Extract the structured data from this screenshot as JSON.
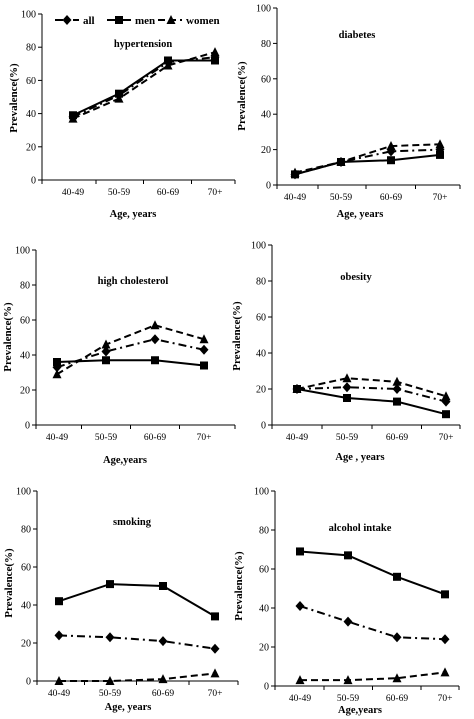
{
  "figure": {
    "legend": {
      "placement": "top-left (first panel)",
      "entries": [
        {
          "series": "all",
          "label": "all"
        },
        {
          "series": "men",
          "label": "men"
        },
        {
          "series": "women",
          "label": "women"
        }
      ]
    }
  },
  "chart_data": [
    {
      "type": "line",
      "title": "hypertension",
      "xlabel": "Age, years",
      "ylabel": "Prevalence(%)",
      "categories": [
        "40-49",
        "50-59",
        "60-69",
        "70+"
      ],
      "ylim": [
        0,
        100
      ],
      "yticks": [
        0,
        20,
        40,
        60,
        80,
        100
      ],
      "series": [
        {
          "name": "all",
          "values": [
            38,
            51,
            71,
            74
          ]
        },
        {
          "name": "men",
          "values": [
            39,
            52,
            72,
            72
          ]
        },
        {
          "name": "women",
          "values": [
            37,
            49,
            69,
            77
          ]
        }
      ]
    },
    {
      "type": "line",
      "title": "diabetes",
      "xlabel": "Age, years",
      "ylabel": "Prevalence(%)",
      "categories": [
        "40-49",
        "50-59",
        "60-69",
        "70+"
      ],
      "ylim": [
        0,
        100
      ],
      "yticks": [
        0,
        20,
        40,
        60,
        80,
        100
      ],
      "series": [
        {
          "name": "all",
          "values": [
            6,
            13,
            19,
            20
          ]
        },
        {
          "name": "men",
          "values": [
            6,
            13,
            14,
            17
          ]
        },
        {
          "name": "women",
          "values": [
            7,
            13,
            22,
            23
          ]
        }
      ]
    },
    {
      "type": "line",
      "title": "high cholesterol",
      "xlabel": "Age,years",
      "ylabel": "Prevalence(%)",
      "categories": [
        "40-49",
        "50-59",
        "60-69",
        "70+"
      ],
      "ylim": [
        0,
        100
      ],
      "yticks": [
        0,
        20,
        40,
        60,
        80,
        100
      ],
      "series": [
        {
          "name": "all",
          "values": [
            33,
            42,
            49,
            43
          ]
        },
        {
          "name": "men",
          "values": [
            36,
            37,
            37,
            34
          ]
        },
        {
          "name": "women",
          "values": [
            29,
            46,
            57,
            49
          ]
        }
      ]
    },
    {
      "type": "line",
      "title": "obesity",
      "xlabel": "Age , years",
      "ylabel": "Prevalence(%)",
      "categories": [
        "40-49",
        "50-59",
        "60-69",
        "70+"
      ],
      "ylim": [
        0,
        100
      ],
      "yticks": [
        0,
        20,
        40,
        60,
        80,
        100
      ],
      "series": [
        {
          "name": "all",
          "values": [
            20,
            21,
            20,
            13
          ]
        },
        {
          "name": "men",
          "values": [
            20,
            15,
            13,
            6
          ]
        },
        {
          "name": "women",
          "values": [
            20,
            26,
            24,
            16
          ]
        }
      ]
    },
    {
      "type": "line",
      "title": "smoking",
      "xlabel": "Age, years",
      "ylabel": "Prevalence(%)",
      "categories": [
        "40-49",
        "50-59",
        "60-69",
        "70+"
      ],
      "ylim": [
        0,
        100
      ],
      "yticks": [
        0,
        20,
        40,
        60,
        80,
        100
      ],
      "series": [
        {
          "name": "all",
          "values": [
            24,
            23,
            21,
            17
          ]
        },
        {
          "name": "men",
          "values": [
            42,
            51,
            50,
            34
          ]
        },
        {
          "name": "women",
          "values": [
            0,
            0,
            1,
            4
          ]
        }
      ]
    },
    {
      "type": "line",
      "title": "alcohol intake",
      "xlabel": "Age,years",
      "ylabel": "Prevalence(%)",
      "categories": [
        "40-49",
        "50-59",
        "60-69",
        "70+"
      ],
      "ylim": [
        0,
        100
      ],
      "yticks": [
        0,
        20,
        40,
        60,
        80,
        100
      ],
      "series": [
        {
          "name": "all",
          "values": [
            41,
            33,
            25,
            24
          ]
        },
        {
          "name": "men",
          "values": [
            69,
            67,
            56,
            47
          ]
        },
        {
          "name": "women",
          "values": [
            3,
            3,
            4,
            7
          ]
        }
      ]
    }
  ]
}
